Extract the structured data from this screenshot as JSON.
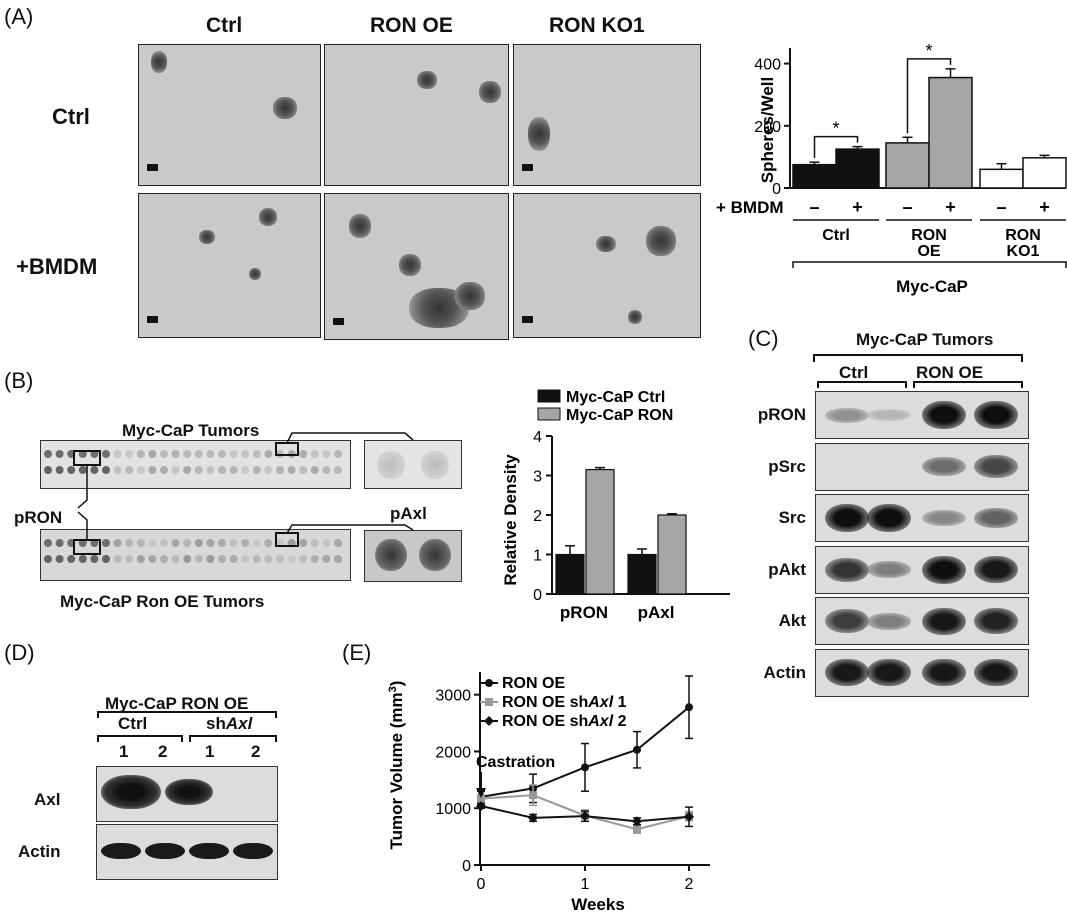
{
  "panelA": {
    "label": "(A)",
    "col_labels": [
      "Ctrl",
      "RON OE",
      "RON KO1"
    ],
    "row_labels": [
      "Ctrl",
      "+BMDM"
    ],
    "chart_data": {
      "type": "bar",
      "ylabel": "Spheres/Well",
      "ylim": [
        0,
        450
      ],
      "yticks": [
        "0",
        "200",
        "400"
      ],
      "bmdm_label": "+ BMDM",
      "bmdm_marks": [
        "–",
        "+",
        "–",
        "+",
        "–",
        "+"
      ],
      "groups": [
        "Ctrl",
        "RON OE",
        "RON KO1"
      ],
      "group_display": [
        "Ctrl",
        "RON\nOE",
        "RON\nKO1"
      ],
      "supergroup": "Myc-CaP",
      "values": [
        75,
        125,
        145,
        355,
        60,
        97
      ],
      "errors": [
        8,
        8,
        18,
        28,
        18,
        8
      ],
      "colors": [
        "#111111",
        "#111111",
        "#a6a6a6",
        "#a6a6a6",
        "#ffffff",
        "#ffffff"
      ],
      "significance": [
        "*",
        "*"
      ]
    }
  },
  "panelB": {
    "label": "(B)",
    "top_label": "Myc-CaP Tumors",
    "bottom_label": "Myc-CaP Ron OE Tumors",
    "left_label": "pRON",
    "right_label": "pAxl",
    "chart_data": {
      "type": "bar",
      "ylabel": "Relative Density",
      "ylim": [
        0,
        4
      ],
      "yticks": [
        "0",
        "1",
        "2",
        "3",
        "4"
      ],
      "categories": [
        "pRON",
        "pAxl"
      ],
      "series": [
        {
          "name": "Myc-CaP Ctrl",
          "color": "#111111",
          "values": [
            1.0,
            1.0
          ],
          "errors": [
            0.22,
            0.14
          ]
        },
        {
          "name": "Myc-CaP RON",
          "color": "#a6a6a6",
          "values": [
            3.15,
            2.0
          ],
          "errors": [
            0.05,
            0.03
          ]
        }
      ]
    }
  },
  "panelC": {
    "label": "(C)",
    "header": "Myc-CaP Tumors",
    "groups": [
      "Ctrl",
      "RON OE"
    ],
    "rows": [
      "pRON",
      "pSrc",
      "Src",
      "pAkt",
      "Akt",
      "Actin"
    ]
  },
  "panelD": {
    "label": "(D)",
    "header": "Myc-CaP RON OE",
    "groups": [
      "Ctrl",
      "shAxl"
    ],
    "group_sh": "sh",
    "group_gene": "Axl",
    "lanes": [
      "1",
      "2",
      "1",
      "2"
    ],
    "rows": [
      "Axl",
      "Actin"
    ]
  },
  "panelE": {
    "label": "(E)",
    "chart_data": {
      "type": "line",
      "ylabel": "Tumor Volume (mm",
      "ylabel_sup": "3",
      "ylabel_close": ")",
      "xlabel": "Weeks",
      "ylim": [
        0,
        3400
      ],
      "yticks": [
        "0",
        "1000",
        "2000",
        "3000"
      ],
      "xticks": [
        "0",
        "1",
        "2"
      ],
      "annotation": "Castration",
      "x": [
        0,
        0.5,
        1,
        1.5,
        2
      ],
      "series": [
        {
          "name": "RON OE",
          "color": "#111111",
          "marker": "circle",
          "values": [
            1200,
            1350,
            1720,
            2030,
            2780
          ],
          "errors": [
            100,
            250,
            420,
            320,
            550
          ]
        },
        {
          "name_prefix": "RON OE sh",
          "name_gene": "Axl",
          "name_suffix": " 1",
          "color": "#999999",
          "marker": "square",
          "values": [
            1170,
            1230,
            870,
            630,
            860
          ],
          "errors": [
            60,
            180,
            100,
            70,
            80
          ]
        },
        {
          "name_prefix": "RON OE sh",
          "name_gene": "Axl",
          "name_suffix": " 2",
          "color": "#111111",
          "marker": "diamond",
          "values": [
            1040,
            830,
            860,
            770,
            850
          ],
          "errors": [
            40,
            60,
            90,
            60,
            170
          ]
        }
      ]
    }
  }
}
